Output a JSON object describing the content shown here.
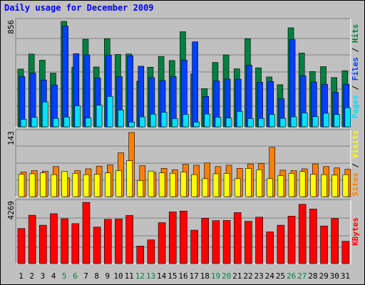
{
  "title": "Daily usage for December 2009",
  "colors": {
    "hits": "#008040",
    "files": "#0040ff",
    "pages": "#00e0ff",
    "visits": "#ffff00",
    "sites": "#ff8000",
    "kbytes": "#ff0000",
    "background": "#c0c0c0",
    "weekend_label": "#008040",
    "weekday_label": "#000000"
  },
  "chart_data": [
    {
      "type": "bar",
      "panel": "hits-files-pages",
      "ymax_label": "856",
      "ylim": [
        0,
        856
      ],
      "right_labels": [
        "Pages",
        "Files",
        "Hits"
      ],
      "categories": [
        "1",
        "2",
        "3",
        "4",
        "5",
        "6",
        "7",
        "8",
        "9",
        "10",
        "11",
        "12",
        "13",
        "14",
        "15",
        "16",
        "17",
        "18",
        "19",
        "20",
        "21",
        "22",
        "23",
        "24",
        "25",
        "26",
        "27",
        "28",
        "29",
        "30",
        "31"
      ],
      "weekend_days": [
        "5",
        "6",
        "12",
        "13",
        "19",
        "20",
        "26",
        "27"
      ],
      "series": [
        {
          "name": "Hits",
          "values": [
            469,
            591,
            541,
            436,
            856,
            484,
            711,
            486,
            715,
            588,
            591,
            371,
            484,
            571,
            538,
            772,
            429,
            310,
            523,
            584,
            471,
            716,
            479,
            405,
            342,
            804,
            599,
            449,
            489,
            400,
            456
          ]
        },
        {
          "name": "Files",
          "values": [
            408,
            436,
            380,
            340,
            818,
            594,
            584,
            397,
            582,
            407,
            576,
            492,
            399,
            375,
            408,
            542,
            690,
            247,
            372,
            388,
            387,
            500,
            362,
            368,
            228,
            708,
            415,
            364,
            346,
            280,
            346
          ]
        },
        {
          "name": "Pages",
          "values": [
            61,
            77,
            202,
            68,
            79,
            171,
            72,
            176,
            247,
            136,
            39,
            81,
            103,
            118,
            67,
            101,
            39,
            104,
            78,
            71,
            125,
            67,
            68,
            101,
            69,
            81,
            113,
            83,
            110,
            100,
            155
          ]
        }
      ]
    },
    {
      "type": "bar",
      "panel": "visits-sites",
      "ymax_label": "143",
      "ylim": [
        0,
        143
      ],
      "right_labels": [
        "Sites",
        "Visits"
      ],
      "series": [
        {
          "name": "Sites",
          "values": [
            55,
            58,
            57,
            67,
            42,
            58,
            62,
            68,
            71,
            98,
            143,
            69,
            54,
            63,
            60,
            72,
            70,
            75,
            67,
            70,
            63,
            73,
            74,
            110,
            59,
            58,
            62,
            73,
            67,
            64,
            61
          ]
        },
        {
          "name": "Visits",
          "values": [
            50,
            51,
            53,
            49,
            56,
            52,
            49,
            50,
            53,
            58,
            80,
            36,
            57,
            53,
            52,
            55,
            49,
            40,
            51,
            52,
            40,
            63,
            60,
            40,
            47,
            52,
            56,
            50,
            49,
            48,
            49
          ]
        }
      ]
    },
    {
      "type": "bar",
      "panel": "kbytes",
      "ymax_label": "4269",
      "ylim": [
        0,
        4269
      ],
      "right_labels": [
        "KBytes"
      ],
      "series": [
        {
          "name": "KBytes",
          "values": [
            2446,
            3370,
            2676,
            3480,
            3130,
            2788,
            4269,
            2546,
            3086,
            3112,
            3354,
            1224,
            1653,
            2856,
            3604,
            3662,
            2331,
            3159,
            2994,
            3008,
            3558,
            2945,
            3238,
            2210,
            2677,
            3307,
            4132,
            3808,
            2623,
            3149,
            1559
          ]
        }
      ]
    }
  ]
}
